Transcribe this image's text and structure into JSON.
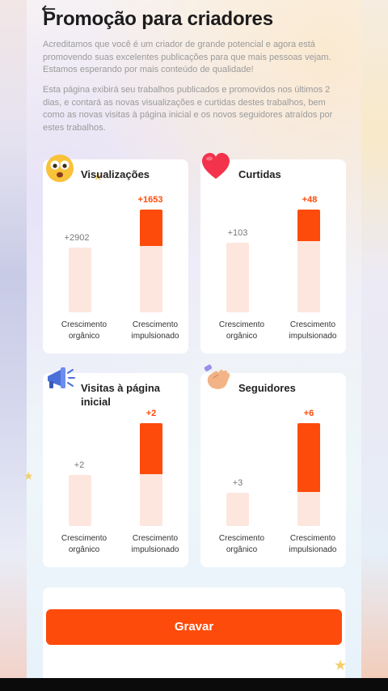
{
  "header": {
    "back_icon": "←",
    "title": "Promoção para criadores"
  },
  "description": {
    "paragraph1": "Acreditamos que você é um criador de grande potencial e agora está promovendo suas excelentes publicações para que mais pessoas vejam. Estamos esperando por mais conteúdo de qualidade!",
    "paragraph2": "Esta página exibirá seu trabalhos publicados e promovidos nos últimos 2 dias, e contará as novas visualizações e curtidas destes trabalhos, bem como as novas visitas à página inicial e os novos seguidores atraídos por estes trabalhos."
  },
  "labels": {
    "organic": "Crescimento orgânico",
    "boosted": "Crescimento impulsionado"
  },
  "cards": [
    {
      "title": "Visualizações",
      "icon": "surprised-face-icon",
      "organic_value": "+2902",
      "boosted_value": "+1653"
    },
    {
      "title": "Curtidas",
      "icon": "heart-icon",
      "organic_value": "+103",
      "boosted_value": "+48"
    },
    {
      "title": "Visitas à página inicial",
      "icon": "megaphone-icon",
      "organic_value": "+2",
      "boosted_value": "+2"
    },
    {
      "title": "Seguidores",
      "icon": "waving-hand-icon",
      "organic_value": "+3",
      "boosted_value": "+6"
    }
  ],
  "bars": [
    {
      "organic_fraction": 0.63,
      "boosted_fraction": 1.0,
      "boost_part_fraction": 0.35
    },
    {
      "organic_fraction": 0.69,
      "boosted_fraction": 1.0,
      "boost_part_fraction": 0.31
    },
    {
      "organic_fraction": 0.5,
      "boosted_fraction": 1.0,
      "boost_part_fraction": 0.5
    },
    {
      "organic_fraction": 0.33,
      "boosted_fraction": 1.0,
      "boost_part_fraction": 0.67
    }
  ],
  "actions": {
    "save_label": "Gravar"
  },
  "colors": {
    "accent": "#fd4b0b",
    "bar_base": "#fde6de"
  }
}
